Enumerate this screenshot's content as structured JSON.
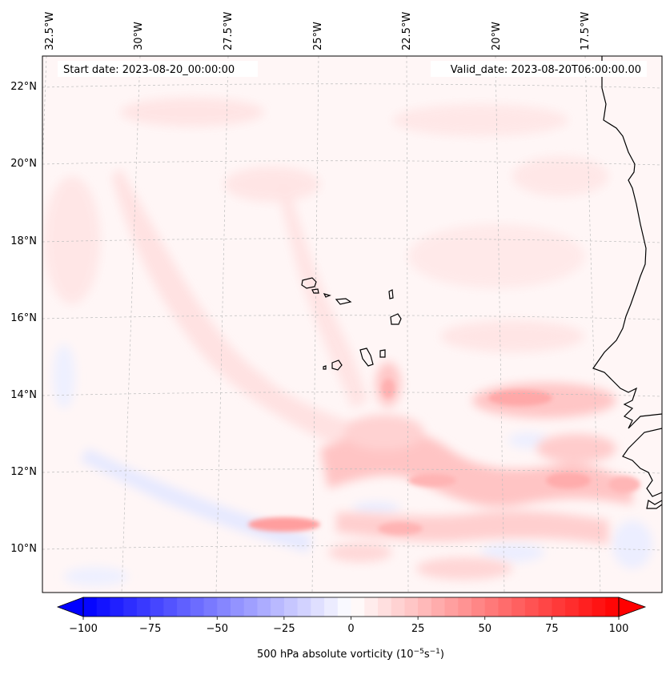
{
  "map": {
    "start_date_label": "Start date: 2023-08-20_00:00:00",
    "valid_date_label": "Valid_date: 2023-08-20T06:00:00.00",
    "lon_labels": [
      "32.5°W",
      "30°W",
      "27.5°W",
      "25°W",
      "22.5°W",
      "20°W",
      "17.5°W"
    ],
    "lat_labels": [
      "22°N",
      "20°N",
      "18°N",
      "16°N",
      "14°N",
      "12°N",
      "10°N"
    ],
    "coastline_color": "#000000",
    "gridline_color": "#bdbdbd"
  },
  "colorbar": {
    "label": "500 hPa absolute vorticity (10",
    "label_exp1": "−5",
    "label_mid": "s",
    "label_exp2": "−1",
    "label_end": ")",
    "ticks": [
      "−100",
      "−75",
      "−50",
      "−25",
      "0",
      "25",
      "50",
      "75",
      "100"
    ],
    "min": -100,
    "max": 100,
    "cmap": "bwr",
    "low_color": "#0000ff",
    "mid_color": "#ffffff",
    "high_color": "#ff0000"
  }
}
